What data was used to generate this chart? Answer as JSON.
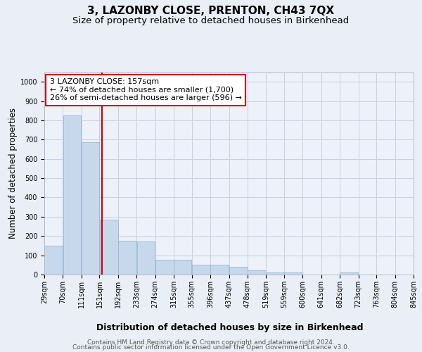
{
  "title": "3, LAZONBY CLOSE, PRENTON, CH43 7QX",
  "subtitle": "Size of property relative to detached houses in Birkenhead",
  "xlabel": "Distribution of detached houses by size in Birkenhead",
  "ylabel": "Number of detached properties",
  "footer_line1": "Contains HM Land Registry data © Crown copyright and database right 2024.",
  "footer_line2": "Contains public sector information licensed under the Open Government Licence v3.0.",
  "annotation_line1": "3 LAZONBY CLOSE: 157sqm",
  "annotation_line2": "← 74% of detached houses are smaller (1,700)",
  "annotation_line3": "26% of semi-detached houses are larger (596) →",
  "bar_color": "#c8d8ec",
  "bar_edgecolor": "#98b8d4",
  "redline_color": "#cc0000",
  "bins": [
    29,
    70,
    111,
    151,
    192,
    233,
    274,
    315,
    355,
    396,
    437,
    478,
    519,
    559,
    600,
    641,
    682,
    723,
    763,
    804,
    845
  ],
  "bar_heights": [
    150,
    825,
    685,
    285,
    175,
    172,
    78,
    76,
    51,
    50,
    42,
    22,
    10,
    10,
    0,
    0,
    10,
    0,
    0,
    0
  ],
  "redline_x": 157,
  "ylim": [
    0,
    1050
  ],
  "yticks": [
    0,
    100,
    200,
    300,
    400,
    500,
    600,
    700,
    800,
    900,
    1000
  ],
  "bg_color": "#eaeff7",
  "plot_bg_color": "#edf1f9",
  "grid_color": "#c8d0e0",
  "title_fontsize": 11,
  "subtitle_fontsize": 9.5,
  "ylabel_fontsize": 8.5,
  "xlabel_fontsize": 9,
  "tick_fontsize": 7,
  "annotation_fontsize": 8,
  "footer_fontsize": 6.5
}
